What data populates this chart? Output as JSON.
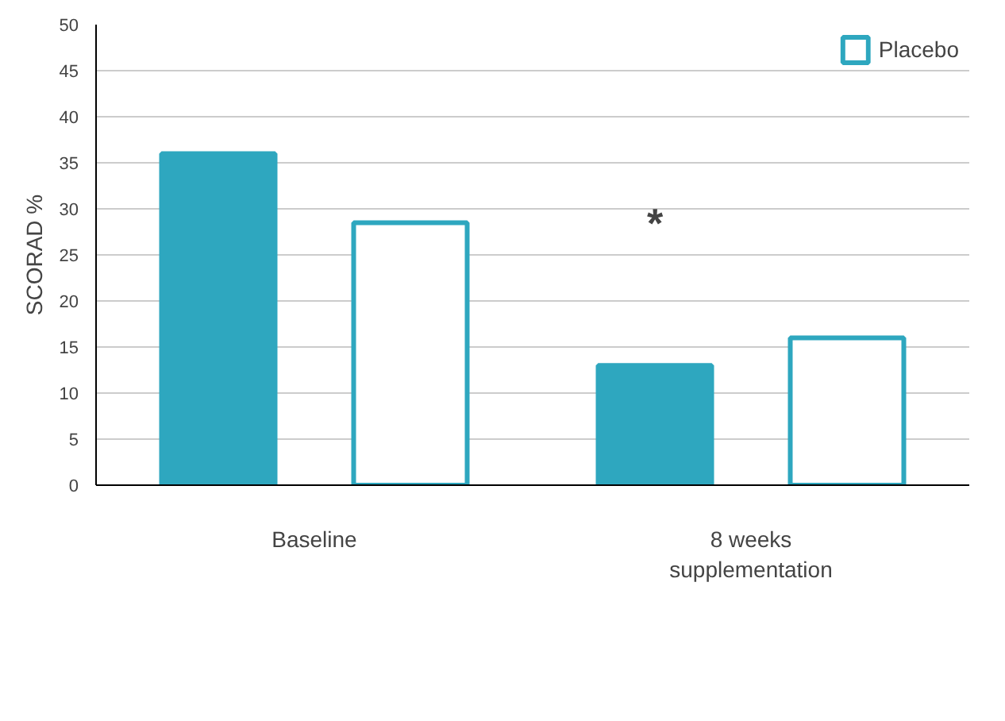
{
  "chart_data": {
    "type": "bar",
    "ylabel": "SCORAD %",
    "categories": [
      "Baseline",
      "8 weeks\nsupplementation"
    ],
    "series": [
      {
        "color": "#2ea7bf",
        "values": [
          36,
          13
        ]
      },
      {
        "name": "Placebo",
        "color": "#ffffff",
        "values": [
          28.5,
          16
        ]
      }
    ],
    "ylim": [
      0,
      50
    ],
    "yticks": [
      0,
      5,
      10,
      15,
      20,
      25,
      30,
      35,
      40,
      45,
      50
    ],
    "grid": "y",
    "legend": "top right",
    "annotations": [
      "*"
    ]
  }
}
